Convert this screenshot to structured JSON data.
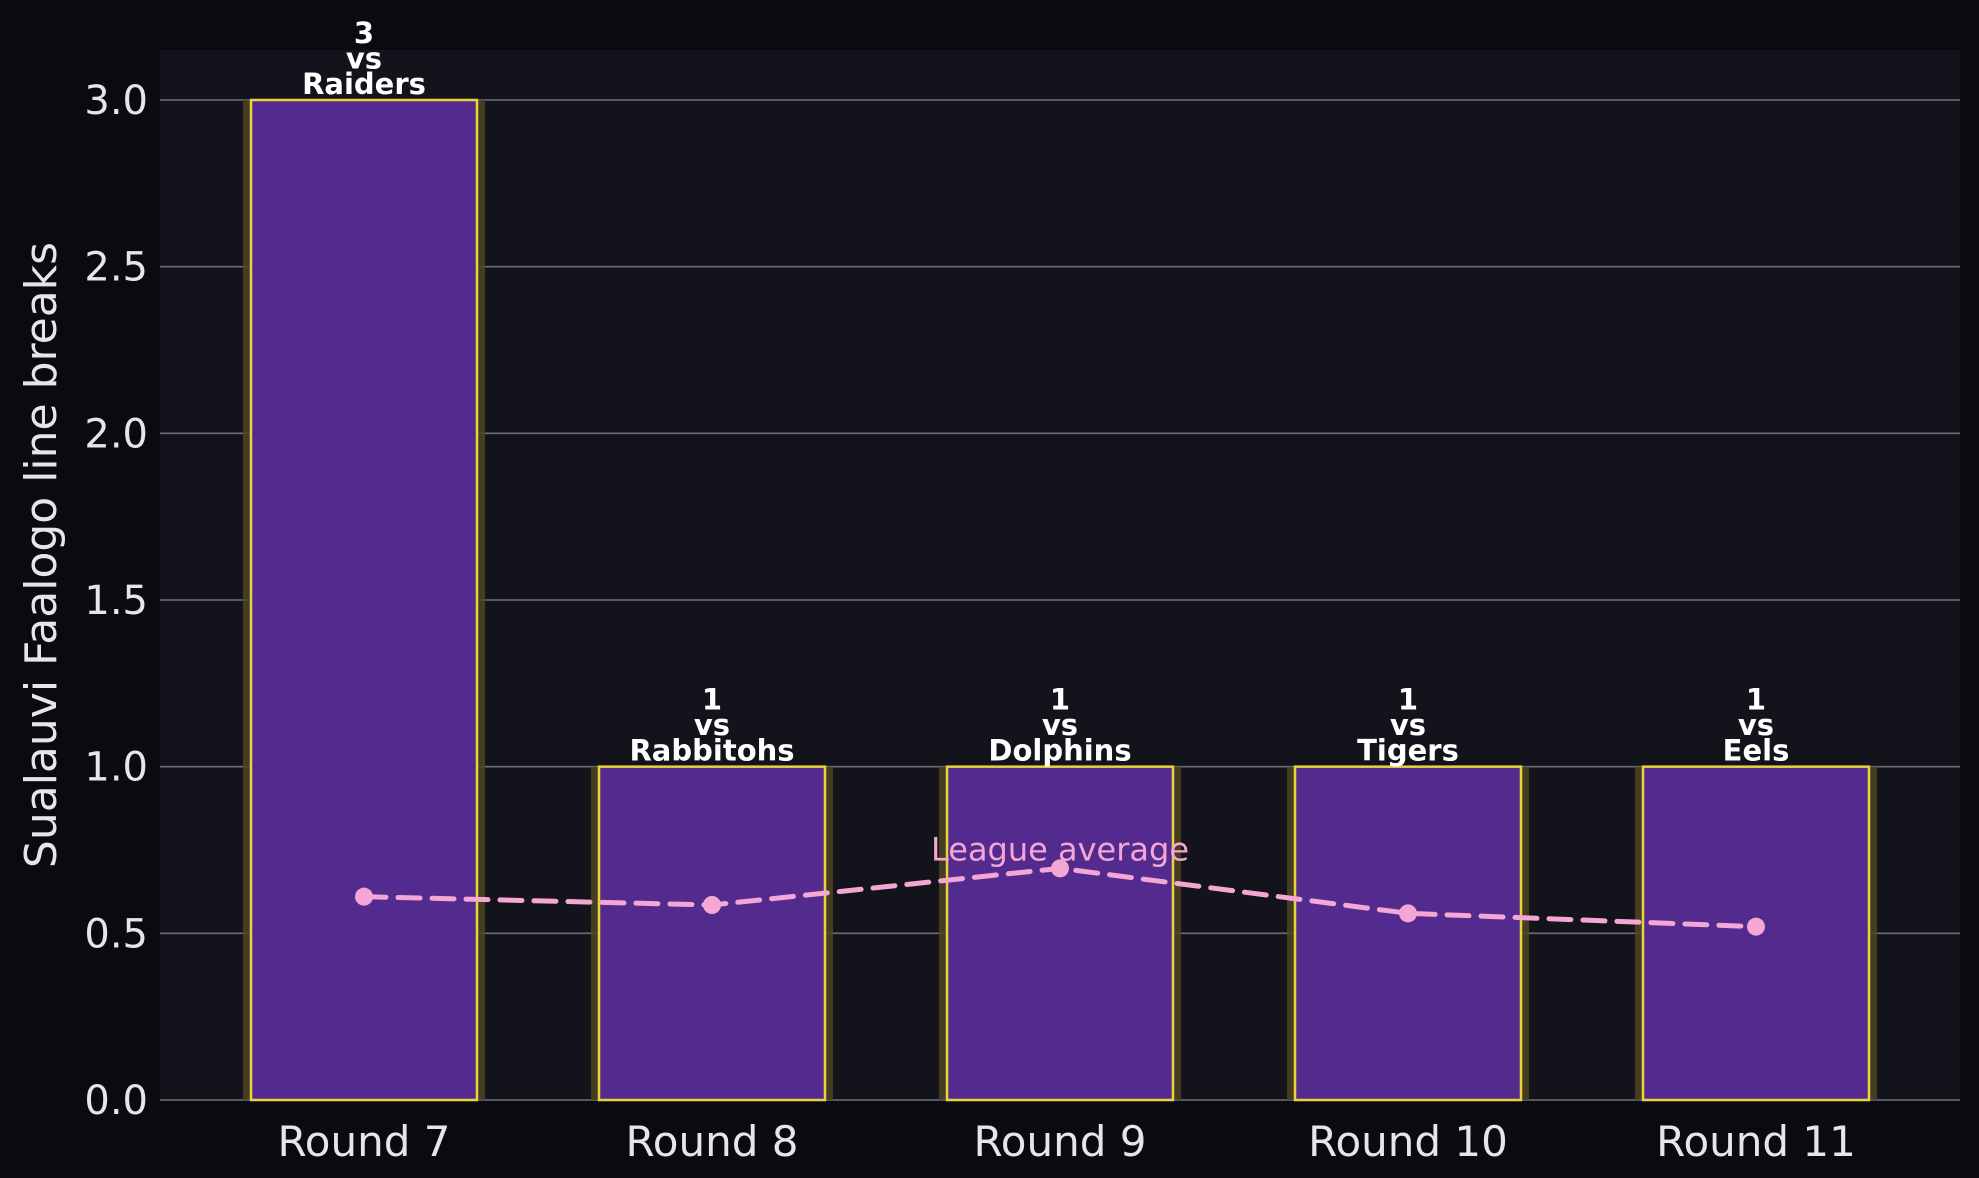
{
  "chart_data": {
    "type": "bar",
    "title": "",
    "xlabel": "",
    "ylabel": "Sualauvi Faalogo line breaks",
    "ylim": [
      0,
      3.15
    ],
    "yticks": [
      "0.0",
      "0.5",
      "1.0",
      "1.5",
      "2.0",
      "2.5",
      "3.0"
    ],
    "categories": [
      "Round 7",
      "Round 8",
      "Round 9",
      "Round 10",
      "Round 11"
    ],
    "series": [
      {
        "values": [
          3,
          1,
          1,
          1,
          1
        ]
      },
      {
        "name": "League average",
        "type": "line",
        "values": [
          0.61,
          0.585,
          0.695,
          0.56,
          0.52
        ]
      }
    ],
    "bar_labels": [
      {
        "value": "3",
        "vs": "vs",
        "opponent": "Raiders"
      },
      {
        "value": "1",
        "vs": "vs",
        "opponent": "Rabbitohs"
      },
      {
        "value": "1",
        "vs": "vs",
        "opponent": "Dolphins"
      },
      {
        "value": "1",
        "vs": "vs",
        "opponent": "Tigers"
      },
      {
        "value": "1",
        "vs": "vs",
        "opponent": "Eels"
      }
    ],
    "grid": "horizontal",
    "colors": {
      "page_bg": "#0b0b0f",
      "plot_bg": "#13131b",
      "bar_fill": "#532b8e",
      "bar_edge": "#e9d33a",
      "bar_glow": "#4e4520",
      "grid": "#6f6f78",
      "axis_text": "#e6e6ea",
      "label_text": "#ffffff",
      "average_line": "#f4a6d4"
    }
  }
}
